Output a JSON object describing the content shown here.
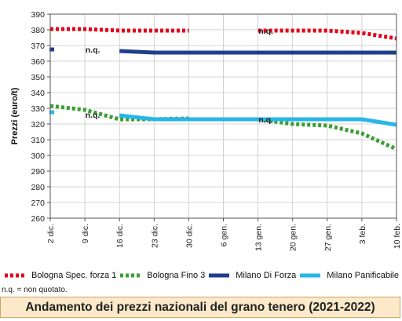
{
  "chart_data": {
    "type": "line",
    "title": "Andamento dei prezzi nazionali del grano tenero (2021-2022)",
    "ylabel": "Prezzi (euro/t)",
    "xlabel": "",
    "ylim": [
      260,
      390
    ],
    "yticks": [
      260,
      270,
      280,
      290,
      300,
      310,
      320,
      330,
      340,
      350,
      360,
      370,
      380,
      390
    ],
    "categories": [
      "2 dic.",
      "9 dic.",
      "16 dic.",
      "23 dic.",
      "30 dic.",
      "6 gen.",
      "13 gen.",
      "20 gen.",
      "27 gen.",
      "3 feb.",
      "10 feb."
    ],
    "grid": true,
    "legend_position": "bottom",
    "series": [
      {
        "name": "Bologna Spec. forza 1",
        "color": "#e2001a",
        "style": "dotted",
        "points": [
          [
            0,
            380.5
          ],
          [
            1,
            380.5
          ],
          [
            2,
            379.5
          ],
          [
            3,
            379.5
          ],
          [
            4,
            379.5
          ],
          [
            6,
            379.5
          ],
          [
            7,
            379.5
          ],
          [
            8,
            379.5
          ],
          [
            9,
            378
          ],
          [
            10,
            374.5
          ]
        ]
      },
      {
        "name": "Bologna Fino 3",
        "color": "#3a9e33",
        "style": "dotted",
        "points": [
          [
            0,
            331.5
          ],
          [
            1,
            329
          ],
          [
            2,
            323
          ],
          [
            3,
            323
          ],
          [
            4,
            323.5
          ],
          [
            6,
            323
          ],
          [
            7,
            320
          ],
          [
            8,
            319
          ],
          [
            9,
            314
          ],
          [
            10,
            304
          ]
        ]
      },
      {
        "name": "Milano Di Forza",
        "color": "#1f3f8c",
        "style": "solid",
        "points": [
          [
            0,
            367.5
          ],
          [
            2,
            366.5
          ],
          [
            3,
            365.5
          ],
          [
            4,
            365.5
          ],
          [
            5,
            365.5
          ],
          [
            6,
            365.5
          ],
          [
            7,
            365.5
          ],
          [
            8,
            365.5
          ],
          [
            9,
            365.5
          ],
          [
            10,
            365.5
          ]
        ]
      },
      {
        "name": "Milano Panificabile",
        "color": "#29b6e6",
        "style": "solid",
        "points": [
          [
            0,
            327.5
          ],
          [
            2,
            325.5
          ],
          [
            3,
            323
          ],
          [
            4,
            323
          ],
          [
            5,
            323
          ],
          [
            6,
            323
          ],
          [
            7,
            323
          ],
          [
            8,
            323
          ],
          [
            9,
            323
          ],
          [
            10,
            319.5
          ]
        ]
      }
    ],
    "annotations": [
      {
        "text": "n.q.",
        "x": 6,
        "y": 379.5
      },
      {
        "text": "n.q.",
        "x": 1,
        "y": 367.5
      },
      {
        "text": "n.q.",
        "x": 1,
        "y": 326
      },
      {
        "text": "n.q.",
        "x": 6,
        "y": 323
      }
    ]
  },
  "footnote": "n.q. = non quotato.",
  "title": "Andamento dei prezzi nazionali del grano tenero (2021-2022)"
}
